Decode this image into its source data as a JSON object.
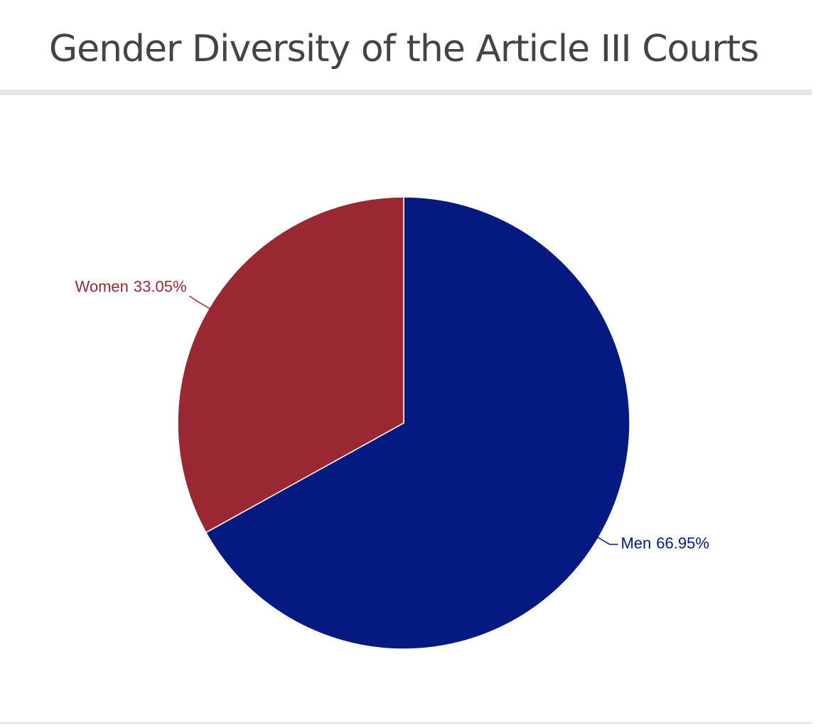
{
  "chart_data": {
    "type": "pie",
    "title": "Gender Diversity of the Article III Courts",
    "categories": [
      "Men",
      "Women"
    ],
    "values": [
      66.95,
      33.05
    ],
    "value_labels": [
      "66.95%",
      "33.05%"
    ],
    "colors": [
      "#051a80",
      "#9a2832"
    ]
  }
}
